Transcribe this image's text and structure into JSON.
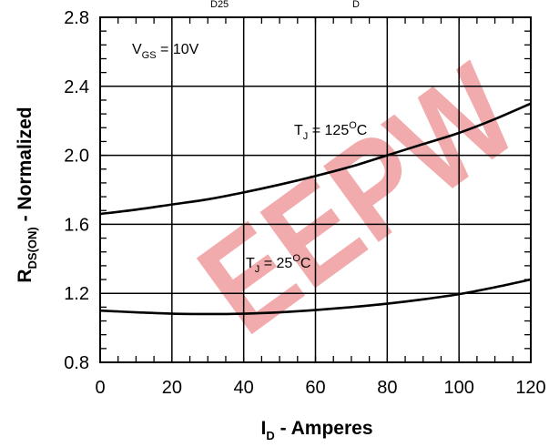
{
  "chart_data": {
    "type": "line",
    "title_fragment": {
      "sub1": "D25",
      "sub2": "D"
    },
    "xlabel": {
      "main": "I",
      "sub": "D",
      "rest": " - Amperes"
    },
    "ylabel": {
      "main": "R",
      "sub": "DS(ON)",
      "rest": " - Normalized"
    },
    "xlim": [
      0,
      120
    ],
    "ylim": [
      0.8,
      2.8
    ],
    "xticks": [
      "0",
      "20",
      "40",
      "60",
      "80",
      "100",
      "120"
    ],
    "yticks": [
      "0.8",
      "1.2",
      "1.6",
      "2.0",
      "2.4",
      "2.8"
    ],
    "grid": true,
    "annotations": {
      "vgs": {
        "main": "V",
        "sub": "GS",
        "rest": " = 10V"
      },
      "tj125": {
        "main": "T",
        "sub": "J",
        "rest": " = 125",
        "sup": "O",
        "unit": "C"
      },
      "tj25": {
        "main": "T",
        "sub": "J",
        "rest": " = 25",
        "sup": "O",
        "unit": "C"
      }
    },
    "watermark": "EEPW",
    "series": [
      {
        "x": [
          0,
          10,
          20,
          30,
          40,
          50,
          60,
          70,
          80,
          90,
          100,
          110,
          120
        ],
        "values": [
          1.66,
          1.685,
          1.715,
          1.745,
          1.785,
          1.83,
          1.88,
          1.935,
          2.0,
          2.065,
          2.13,
          2.21,
          2.3
        ]
      },
      {
        "x": [
          0,
          10,
          20,
          30,
          40,
          50,
          60,
          70,
          80,
          90,
          100,
          110,
          120
        ],
        "values": [
          1.1,
          1.09,
          1.082,
          1.08,
          1.082,
          1.09,
          1.103,
          1.12,
          1.14,
          1.165,
          1.195,
          1.235,
          1.28
        ]
      }
    ]
  }
}
